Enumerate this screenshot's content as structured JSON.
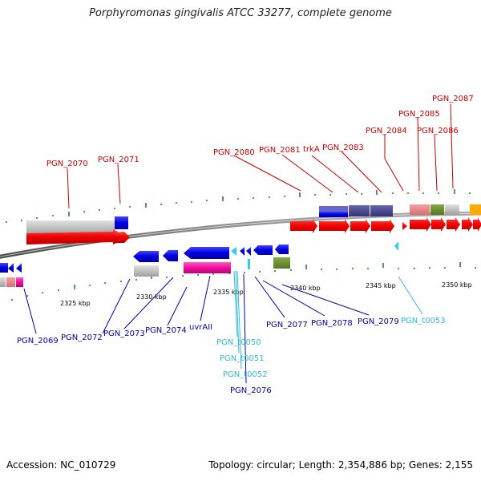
{
  "title": "Porphyromonas gingivalis ATCC 33277, complete genome",
  "footer": {
    "accession": "Accession: NC_010729",
    "summary": "Topology: circular; Length: 2,354,886 bp; Genes: 2,155"
  },
  "scale_labels": [
    "2325 kbp",
    "2330 kbp",
    "2335 kbp",
    "2340 kbp",
    "2345 kbp",
    "2350 kbp"
  ],
  "colors": {
    "red_label": "#cc0000",
    "blue_label": "#0000aa",
    "cyan_label": "#33bbdd"
  },
  "genes_top": [
    {
      "label": "PGN_2070"
    },
    {
      "label": "PGN_2071"
    },
    {
      "label": "PGN_2080"
    },
    {
      "label": "PGN_2081"
    },
    {
      "label": "trkA"
    },
    {
      "label": "PGN_2083"
    },
    {
      "label": "PGN_2084"
    },
    {
      "label": "PGN_2085"
    },
    {
      "label": "PGN_2086"
    },
    {
      "label": "PGN_2087"
    }
  ],
  "genes_bottom": [
    {
      "label": "PGN_2069",
      "color": "blue"
    },
    {
      "label": "PGN_2072",
      "color": "blue"
    },
    {
      "label": "PGN_2073",
      "color": "blue"
    },
    {
      "label": "PGN_2074",
      "color": "blue"
    },
    {
      "label": "uvrAII",
      "color": "blue"
    },
    {
      "label": "PGN_t0050",
      "color": "cyan"
    },
    {
      "label": "PGN_t0051",
      "color": "cyan"
    },
    {
      "label": "PGN_t0052",
      "color": "cyan"
    },
    {
      "label": "PGN_2076",
      "color": "blue"
    },
    {
      "label": "PGN_2077",
      "color": "blue"
    },
    {
      "label": "PGN_2078",
      "color": "blue"
    },
    {
      "label": "PGN_2079",
      "color": "blue"
    },
    {
      "label": "PGN_t0053",
      "color": "cyan"
    }
  ]
}
